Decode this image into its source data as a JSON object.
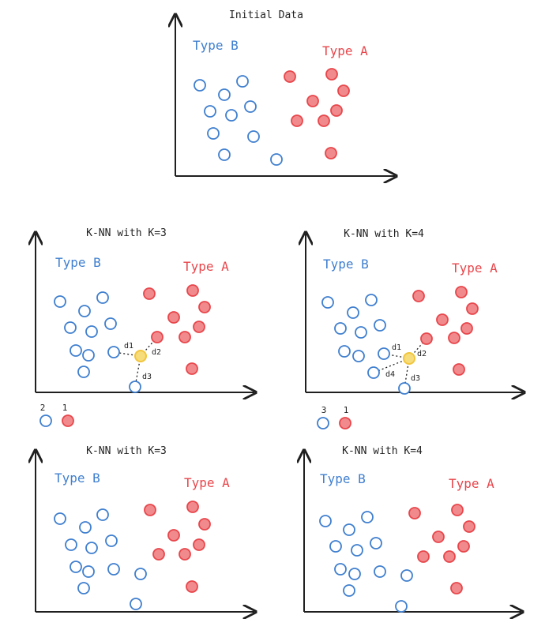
{
  "colors": {
    "type_a": "#e8464b",
    "type_a_fill": "#f08a8c",
    "type_b": "#3f7fcf",
    "query": "#f2c53d",
    "ink": "#1f1f1f"
  },
  "panels": [
    {
      "id": "initial",
      "title": "Initial Data",
      "label_b": "Type B",
      "label_a": "Type A",
      "query": false,
      "distances": [],
      "counts": null
    },
    {
      "id": "k3-top",
      "title": "K-NN with K=3",
      "label_b": "Type B",
      "label_a": "Type A",
      "query": true,
      "distances": [
        "d1",
        "d2",
        "d3"
      ],
      "counts": {
        "b": "2",
        "a": "1"
      }
    },
    {
      "id": "k4-top",
      "title": "K-NN with K=4",
      "label_b": "Type B",
      "label_a": "Type A",
      "query": true,
      "distances": [
        "d1",
        "d2",
        "d3",
        "d4"
      ],
      "counts": {
        "b": "3",
        "a": "1"
      }
    },
    {
      "id": "k3-bottom",
      "title": "K-NN with K=3",
      "label_b": "Type B",
      "label_a": "Type A",
      "query": false,
      "distances": [],
      "counts": null
    },
    {
      "id": "k4-bottom",
      "title": "K-NN with K=4",
      "label_b": "Type B",
      "label_a": "Type A",
      "query": false,
      "distances": [],
      "counts": null
    }
  ]
}
